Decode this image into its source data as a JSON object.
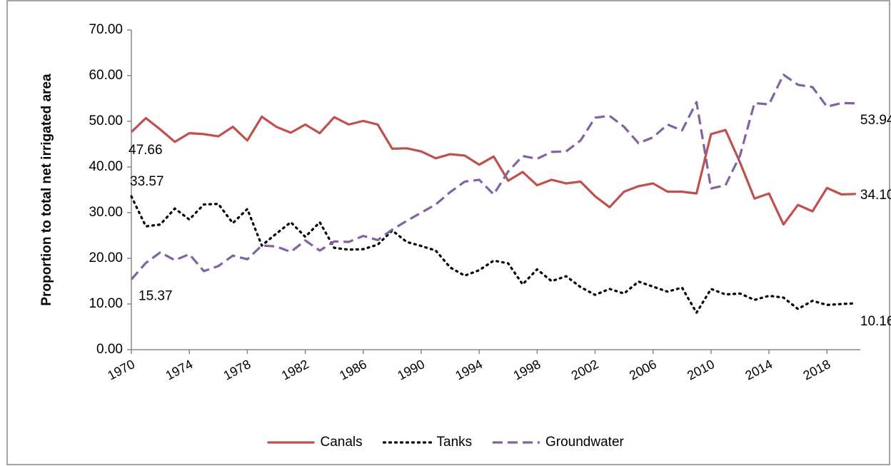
{
  "chart_data": {
    "type": "line",
    "ylabel": "Proportion to total net irrigated area",
    "x": [
      1970,
      1971,
      1972,
      1973,
      1974,
      1975,
      1976,
      1977,
      1978,
      1979,
      1980,
      1981,
      1982,
      1983,
      1984,
      1985,
      1986,
      1987,
      1988,
      1989,
      1990,
      1991,
      1992,
      1993,
      1994,
      1995,
      1996,
      1997,
      1998,
      1999,
      2000,
      2001,
      2002,
      2003,
      2004,
      2005,
      2006,
      2007,
      2008,
      2009,
      2010,
      2011,
      2012,
      2013,
      2014,
      2015,
      2016,
      2017,
      2018,
      2019,
      2020
    ],
    "xlim": [
      1970,
      2020.3
    ],
    "xticks": [
      1970,
      1974,
      1978,
      1982,
      1986,
      1990,
      1994,
      1998,
      2002,
      2006,
      2010,
      2014,
      2018
    ],
    "ylim": [
      0,
      70
    ],
    "yticks": [
      {
        "value": 0,
        "label": "0.00"
      },
      {
        "value": 10,
        "label": "10.00"
      },
      {
        "value": 20,
        "label": "20.00"
      },
      {
        "value": 30,
        "label": "30.00"
      },
      {
        "value": 40,
        "label": "40.00"
      },
      {
        "value": 50,
        "label": "50.00"
      },
      {
        "value": 60,
        "label": "60.00"
      },
      {
        "value": 70,
        "label": "70.00"
      }
    ],
    "legend": "bottom",
    "series": [
      {
        "name": "Canals",
        "color": "#c0504d",
        "linestyle": "solid",
        "values": [
          47.66,
          50.7,
          48.2,
          45.5,
          47.4,
          47.2,
          46.7,
          48.8,
          45.8,
          51.0,
          48.8,
          47.5,
          49.3,
          47.4,
          50.9,
          49.3,
          50.1,
          49.3,
          44.0,
          44.1,
          43.4,
          41.9,
          42.8,
          42.5,
          40.5,
          42.3,
          37.0,
          38.9,
          36.0,
          37.2,
          36.4,
          36.8,
          33.6,
          31.2,
          34.6,
          35.8,
          36.4,
          34.6,
          34.6,
          34.2,
          47.2,
          48.1,
          41.0,
          33.1,
          34.2,
          27.4,
          31.7,
          30.3,
          35.4,
          34.0,
          34.1
        ],
        "value_labels": [
          "47.66",
          null,
          null,
          null,
          null,
          null,
          null,
          null,
          null,
          null,
          null,
          null,
          null,
          null,
          null,
          null,
          null,
          null,
          null,
          null,
          null,
          null,
          null,
          null,
          null,
          null,
          null,
          null,
          null,
          null,
          null,
          null,
          null,
          null,
          null,
          null,
          null,
          null,
          null,
          null,
          null,
          null,
          null,
          null,
          null,
          null,
          null,
          null,
          null,
          null,
          "34.10"
        ]
      },
      {
        "name": "Tanks",
        "color": "#000000",
        "linestyle": "dotted",
        "values": [
          33.57,
          27.0,
          27.4,
          30.9,
          28.5,
          31.8,
          31.9,
          27.7,
          30.8,
          22.8,
          25.4,
          27.9,
          24.7,
          27.9,
          22.3,
          21.9,
          22.0,
          23.0,
          26.1,
          23.6,
          22.7,
          21.7,
          18.0,
          16.2,
          17.4,
          19.5,
          18.9,
          14.3,
          17.6,
          15.0,
          16.1,
          13.7,
          12.0,
          13.3,
          12.3,
          14.9,
          13.8,
          12.7,
          13.6,
          8.1,
          13.3,
          12.1,
          12.3,
          10.9,
          11.8,
          11.4,
          8.9,
          10.7,
          9.8,
          10.0,
          10.16
        ],
        "value_labels": [
          "33.57",
          null,
          null,
          null,
          null,
          null,
          null,
          null,
          null,
          null,
          null,
          null,
          null,
          null,
          null,
          null,
          null,
          null,
          null,
          null,
          null,
          null,
          null,
          null,
          null,
          null,
          null,
          null,
          null,
          null,
          null,
          null,
          null,
          null,
          null,
          null,
          null,
          null,
          null,
          null,
          null,
          null,
          null,
          null,
          null,
          null,
          null,
          null,
          null,
          null,
          "10.16"
        ]
      },
      {
        "name": "Groundwater",
        "color": "#8064a2",
        "linestyle": "dashed",
        "values": [
          15.37,
          19.0,
          21.3,
          19.6,
          20.9,
          17.2,
          18.3,
          20.6,
          19.8,
          22.8,
          22.6,
          21.4,
          23.9,
          21.7,
          23.7,
          23.6,
          24.9,
          24.0,
          26.3,
          28.2,
          30.0,
          31.8,
          34.5,
          36.8,
          37.2,
          34.0,
          39.0,
          42.4,
          41.8,
          43.3,
          43.4,
          45.8,
          50.8,
          51.2,
          48.8,
          45.2,
          46.5,
          49.3,
          48.0,
          54.2,
          35.3,
          36.0,
          42.5,
          54.0,
          53.7,
          60.2,
          58.0,
          57.5,
          53.2,
          54.0,
          53.94
        ],
        "value_labels": [
          "15.37",
          null,
          null,
          null,
          null,
          null,
          null,
          null,
          null,
          null,
          null,
          null,
          null,
          null,
          null,
          null,
          null,
          null,
          null,
          null,
          null,
          null,
          null,
          null,
          null,
          null,
          null,
          null,
          null,
          null,
          null,
          null,
          null,
          null,
          null,
          null,
          null,
          null,
          null,
          null,
          null,
          null,
          null,
          null,
          null,
          null,
          null,
          null,
          null,
          null,
          "53.94"
        ]
      }
    ]
  }
}
